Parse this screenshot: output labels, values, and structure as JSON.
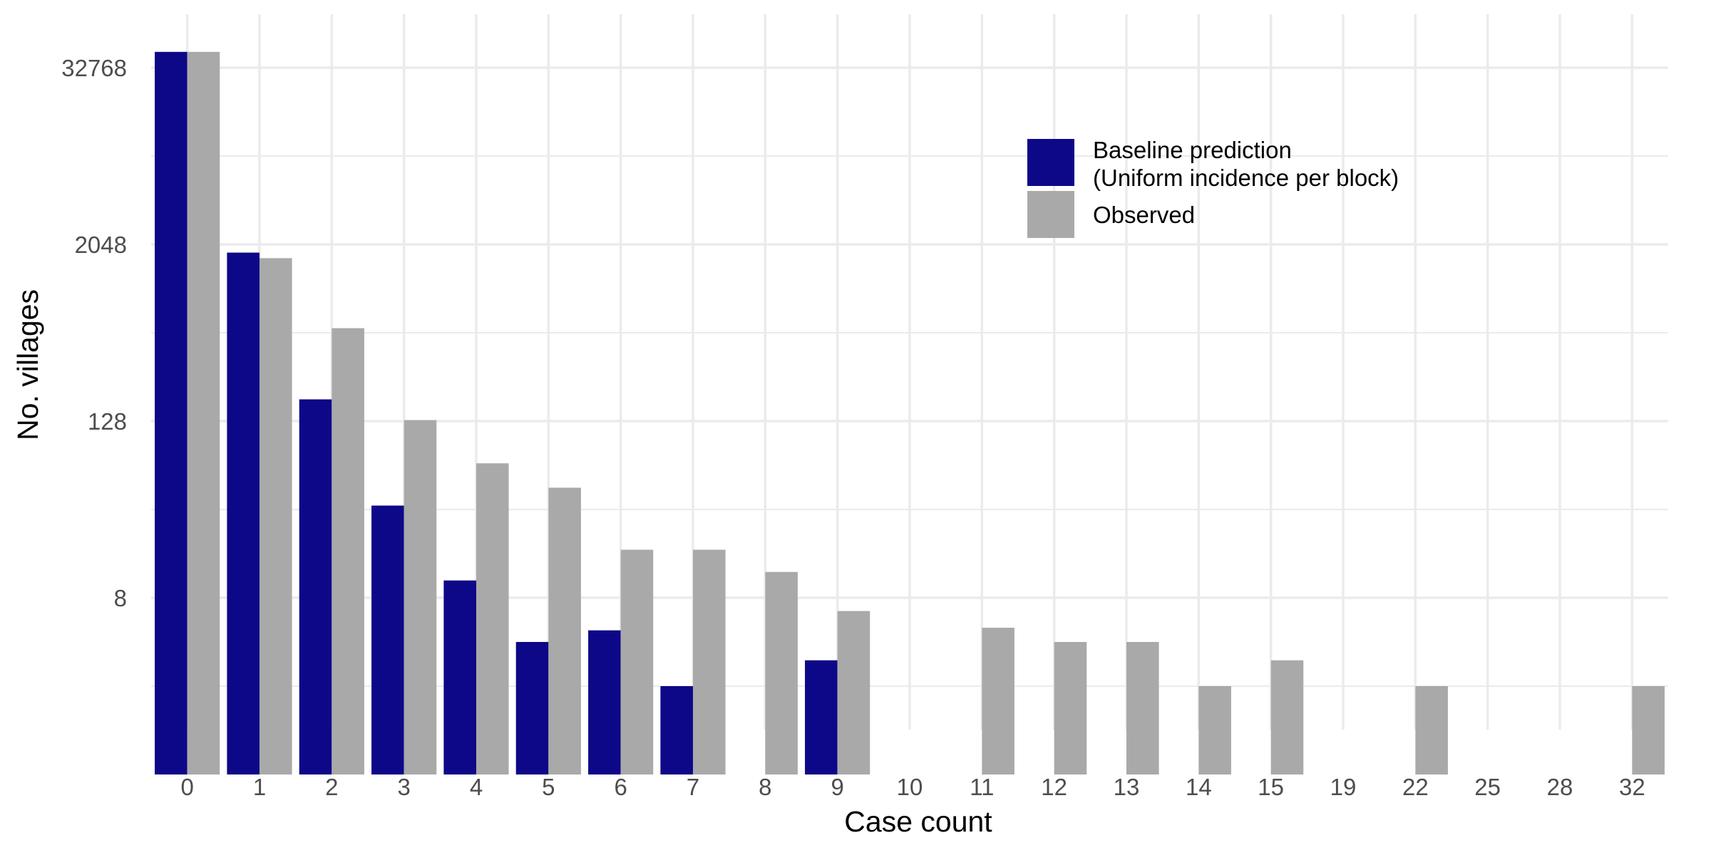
{
  "colors": {
    "baseline": "#0d0887",
    "observed": "#a9a9a9",
    "grid": "#ebebeb",
    "tick_text": "#4d4d4d"
  },
  "chart_data": {
    "type": "bar",
    "title": "",
    "xlabel": "Case count",
    "ylabel": "No. villages",
    "y_scale": "log2",
    "y_ticks": [
      8,
      128,
      2048,
      32768
    ],
    "ylim": [
      0.5,
      48000
    ],
    "grid": true,
    "legend_position": "top-right",
    "categories": [
      "0",
      "1",
      "2",
      "3",
      "4",
      "5",
      "6",
      "7",
      "8",
      "9",
      "10",
      "11",
      "12",
      "13",
      "14",
      "15",
      "19",
      "22",
      "25",
      "28",
      "32"
    ],
    "series": [
      {
        "name": "Baseline prediction\n(Uniform incidence per block)",
        "legend_lines": [
          "Baseline prediction",
          "(Uniform incidence per block)"
        ],
        "color": "#0d0887",
        "values": [
          42000,
          1800,
          180,
          34,
          10.5,
          4,
          4.8,
          2,
          null,
          3,
          null,
          null,
          null,
          null,
          null,
          null,
          null,
          null,
          null,
          null,
          null
        ]
      },
      {
        "name": "Observed",
        "legend_lines": [
          "Observed"
        ],
        "color": "#a9a9a9",
        "values": [
          42000,
          1650,
          550,
          130,
          66,
          45,
          17,
          17,
          12,
          6.5,
          null,
          5,
          4,
          4,
          2,
          3,
          null,
          2,
          null,
          null,
          2
        ]
      }
    ]
  }
}
